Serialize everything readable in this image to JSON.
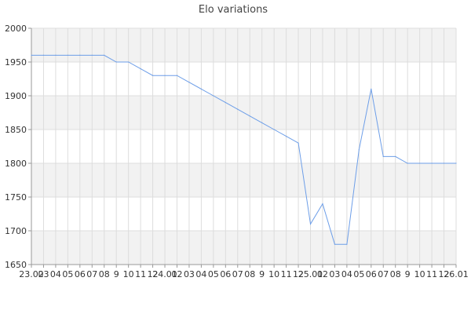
{
  "chart_data": {
    "type": "line",
    "title": "Elo variations",
    "xlabel": "",
    "ylabel": "",
    "ylim": [
      1650,
      2000
    ],
    "yticks": [
      1650,
      1700,
      1750,
      1800,
      1850,
      1900,
      1950,
      2000
    ],
    "grid": true,
    "legend": "none",
    "x_tick_labels": [
      "23.02",
      "03",
      "04",
      "05",
      "06",
      "07",
      "08",
      "9",
      "10",
      "11",
      "12",
      "24.01",
      "02",
      "03",
      "04",
      "05",
      "06",
      "07",
      "08",
      "9",
      "10",
      "11",
      "12",
      "25.01",
      "02",
      "03",
      "04",
      "05",
      "06",
      "07",
      "08",
      "9",
      "10",
      "11",
      "12",
      "26.01"
    ],
    "series": [
      {
        "color": "#6d9ee8",
        "values": [
          1960,
          1960,
          1960,
          1960,
          1960,
          1960,
          1960,
          1950,
          1950,
          1940,
          1930,
          1930,
          1930,
          1920,
          1910,
          1900,
          1890,
          1880,
          1870,
          1860,
          1850,
          1840,
          1830,
          1710,
          1740,
          1680,
          1680,
          1820,
          1910,
          1810,
          1810,
          1800,
          1800,
          1800,
          1800,
          1800
        ]
      }
    ]
  }
}
